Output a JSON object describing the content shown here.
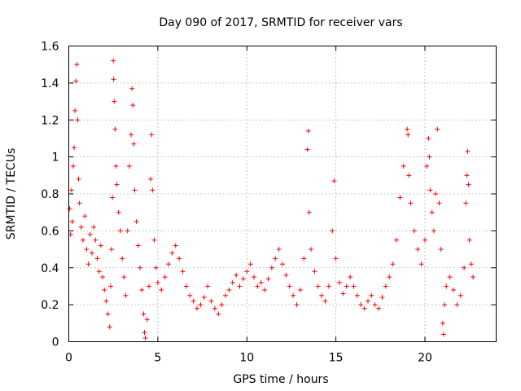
{
  "chart_data": {
    "type": "scatter",
    "title": "Day 090 of 2017, SRMTID for receiver vars",
    "xlabel": "GPS time / hours",
    "ylabel": "SRMTID / TECUs",
    "xlim": [
      0,
      24
    ],
    "ylim": [
      0,
      1.6
    ],
    "xticks": [
      0,
      5,
      10,
      15,
      20
    ],
    "yticks": [
      0,
      0.2,
      0.4,
      0.6,
      0.8,
      1,
      1.2,
      1.4,
      1.6
    ],
    "xtick_labels": [
      "0",
      "5",
      "10",
      "15",
      "20"
    ],
    "ytick_labels": [
      "0",
      "0.2",
      "0.4",
      "0.6",
      "0.8",
      "1",
      "1.2",
      "1.4",
      "1.6"
    ],
    "grid": true,
    "marker": "plus",
    "color": "#ff0000",
    "series": [
      {
        "name": "SRMTID",
        "points": [
          [
            0.05,
            0.72
          ],
          [
            0.1,
            0.58
          ],
          [
            0.15,
            0.82
          ],
          [
            0.2,
            0.65
          ],
          [
            0.25,
            0.95
          ],
          [
            0.3,
            1.05
          ],
          [
            0.35,
            1.25
          ],
          [
            0.4,
            1.41
          ],
          [
            0.45,
            1.5
          ],
          [
            0.5,
            1.2
          ],
          [
            0.55,
            0.88
          ],
          [
            0.6,
            0.75
          ],
          [
            0.7,
            0.62
          ],
          [
            0.8,
            0.55
          ],
          [
            0.9,
            0.68
          ],
          [
            1.0,
            0.5
          ],
          [
            1.1,
            0.42
          ],
          [
            1.2,
            0.58
          ],
          [
            1.3,
            0.48
          ],
          [
            1.4,
            0.62
          ],
          [
            1.5,
            0.55
          ],
          [
            1.6,
            0.45
          ],
          [
            1.7,
            0.38
          ],
          [
            1.8,
            0.52
          ],
          [
            1.9,
            0.35
          ],
          [
            2.0,
            0.28
          ],
          [
            2.1,
            0.22
          ],
          [
            2.2,
            0.15
          ],
          [
            2.3,
            0.08
          ],
          [
            2.35,
            0.3
          ],
          [
            2.4,
            0.5
          ],
          [
            2.45,
            0.78
          ],
          [
            2.5,
            1.52
          ],
          [
            2.52,
            1.42
          ],
          [
            2.55,
            1.3
          ],
          [
            2.6,
            1.15
          ],
          [
            2.65,
            0.95
          ],
          [
            2.7,
            0.85
          ],
          [
            2.8,
            0.7
          ],
          [
            2.9,
            0.6
          ],
          [
            3.0,
            0.45
          ],
          [
            3.1,
            0.35
          ],
          [
            3.2,
            0.25
          ],
          [
            3.3,
            0.6
          ],
          [
            3.4,
            0.95
          ],
          [
            3.5,
            1.12
          ],
          [
            3.55,
            1.37
          ],
          [
            3.6,
            1.28
          ],
          [
            3.65,
            1.07
          ],
          [
            3.7,
            0.82
          ],
          [
            3.8,
            0.65
          ],
          [
            3.9,
            0.52
          ],
          [
            4.0,
            0.4
          ],
          [
            4.1,
            0.28
          ],
          [
            4.2,
            0.15
          ],
          [
            4.25,
            0.05
          ],
          [
            4.3,
            0.02
          ],
          [
            4.4,
            0.12
          ],
          [
            4.5,
            0.3
          ],
          [
            4.6,
            0.88
          ],
          [
            4.65,
            1.12
          ],
          [
            4.7,
            0.82
          ],
          [
            4.8,
            0.55
          ],
          [
            4.9,
            0.4
          ],
          [
            5.0,
            0.32
          ],
          [
            5.2,
            0.28
          ],
          [
            5.4,
            0.35
          ],
          [
            5.6,
            0.42
          ],
          [
            5.8,
            0.48
          ],
          [
            6.0,
            0.52
          ],
          [
            6.2,
            0.45
          ],
          [
            6.4,
            0.38
          ],
          [
            6.6,
            0.3
          ],
          [
            6.8,
            0.25
          ],
          [
            7.0,
            0.22
          ],
          [
            7.2,
            0.18
          ],
          [
            7.4,
            0.2
          ],
          [
            7.6,
            0.24
          ],
          [
            7.8,
            0.3
          ],
          [
            8.0,
            0.22
          ],
          [
            8.2,
            0.18
          ],
          [
            8.4,
            0.15
          ],
          [
            8.6,
            0.2
          ],
          [
            8.8,
            0.25
          ],
          [
            9.0,
            0.28
          ],
          [
            9.2,
            0.32
          ],
          [
            9.4,
            0.36
          ],
          [
            9.6,
            0.3
          ],
          [
            9.8,
            0.34
          ],
          [
            10.0,
            0.38
          ],
          [
            10.2,
            0.42
          ],
          [
            10.4,
            0.35
          ],
          [
            10.6,
            0.3
          ],
          [
            10.8,
            0.32
          ],
          [
            11.0,
            0.28
          ],
          [
            11.2,
            0.34
          ],
          [
            11.4,
            0.4
          ],
          [
            11.6,
            0.45
          ],
          [
            11.8,
            0.5
          ],
          [
            12.0,
            0.42
          ],
          [
            12.2,
            0.36
          ],
          [
            12.4,
            0.3
          ],
          [
            12.6,
            0.25
          ],
          [
            12.8,
            0.2
          ],
          [
            13.0,
            0.28
          ],
          [
            13.2,
            0.45
          ],
          [
            13.4,
            1.04
          ],
          [
            13.45,
            1.14
          ],
          [
            13.5,
            0.7
          ],
          [
            13.6,
            0.5
          ],
          [
            13.8,
            0.38
          ],
          [
            14.0,
            0.3
          ],
          [
            14.2,
            0.25
          ],
          [
            14.4,
            0.22
          ],
          [
            14.6,
            0.3
          ],
          [
            14.8,
            0.6
          ],
          [
            14.9,
            0.87
          ],
          [
            15.0,
            0.45
          ],
          [
            15.2,
            0.32
          ],
          [
            15.4,
            0.26
          ],
          [
            15.6,
            0.3
          ],
          [
            15.8,
            0.35
          ],
          [
            16.0,
            0.3
          ],
          [
            16.2,
            0.25
          ],
          [
            16.4,
            0.2
          ],
          [
            16.6,
            0.18
          ],
          [
            16.8,
            0.22
          ],
          [
            17.0,
            0.25
          ],
          [
            17.2,
            0.2
          ],
          [
            17.4,
            0.18
          ],
          [
            17.6,
            0.24
          ],
          [
            17.8,
            0.3
          ],
          [
            18.0,
            0.35
          ],
          [
            18.2,
            0.42
          ],
          [
            18.4,
            0.55
          ],
          [
            18.6,
            0.78
          ],
          [
            18.8,
            0.95
          ],
          [
            19.0,
            1.15
          ],
          [
            19.05,
            1.12
          ],
          [
            19.1,
            0.9
          ],
          [
            19.2,
            0.75
          ],
          [
            19.4,
            0.6
          ],
          [
            19.6,
            0.5
          ],
          [
            19.8,
            0.42
          ],
          [
            20.0,
            0.55
          ],
          [
            20.1,
            0.95
          ],
          [
            20.2,
            1.1
          ],
          [
            20.25,
            1.0
          ],
          [
            20.3,
            0.82
          ],
          [
            20.4,
            0.7
          ],
          [
            20.5,
            0.6
          ],
          [
            20.6,
            0.8
          ],
          [
            20.7,
            1.15
          ],
          [
            20.8,
            0.75
          ],
          [
            20.9,
            0.5
          ],
          [
            21.0,
            0.1
          ],
          [
            21.05,
            0.04
          ],
          [
            21.1,
            0.2
          ],
          [
            21.2,
            0.3
          ],
          [
            21.4,
            0.35
          ],
          [
            21.6,
            0.28
          ],
          [
            21.8,
            0.2
          ],
          [
            22.0,
            0.25
          ],
          [
            22.2,
            0.4
          ],
          [
            22.3,
            0.75
          ],
          [
            22.35,
            0.9
          ],
          [
            22.4,
            1.03
          ],
          [
            22.45,
            0.85
          ],
          [
            22.5,
            0.55
          ],
          [
            22.6,
            0.42
          ],
          [
            22.7,
            0.35
          ]
        ]
      }
    ]
  }
}
